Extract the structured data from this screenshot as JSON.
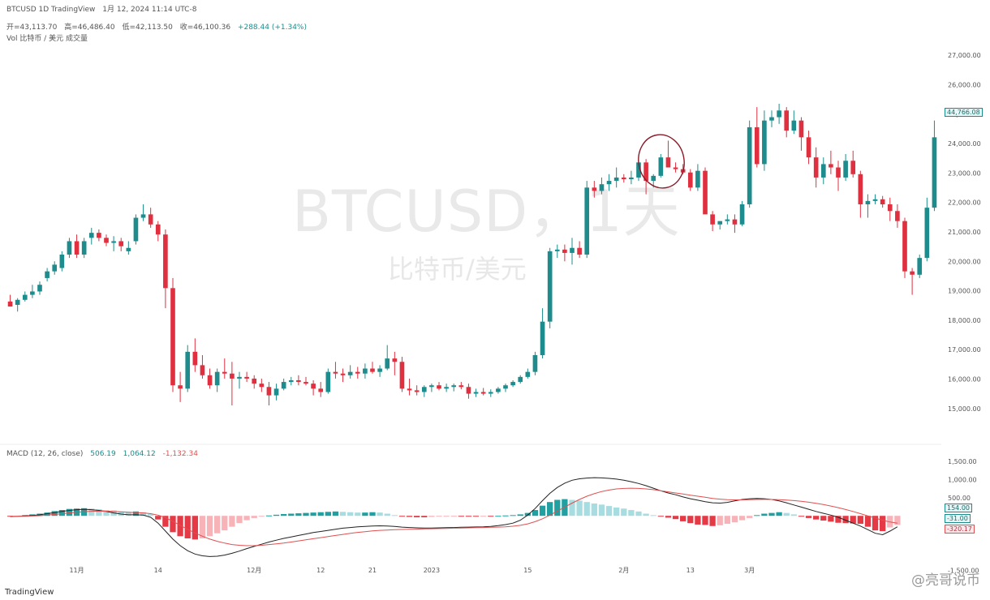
{
  "header": {
    "line1": "BTCUSD 1D TradingView",
    "line1_date": "1月 12, 2024 11:14 UTC-8",
    "ohlc": [
      "开=43,113.70",
      "高=46,486.40",
      "低=42,113.50",
      "收=46,100.36",
      "+288.44 (+1.34%)"
    ],
    "line3": "Vol 比特币 / 美元 成交量"
  },
  "watermark": {
    "main": "BTCUSD，1天",
    "sub": "比特币/美元"
  },
  "brand": {
    "source": "TradingView",
    "logo": "@亮哥说币"
  },
  "colors": {
    "up": "#1e8c8c",
    "down": "#e03040",
    "macd_line": "#222222",
    "signal_line": "#e05050",
    "hist_up": "#20a0a0",
    "hist_up_light": "#a7dde0",
    "hist_down": "#e53945",
    "hist_down_light": "#f7b3b8"
  },
  "macd": {
    "label": "MACD (12, 26, close)",
    "values": [
      "506.19",
      "1,064.12",
      "-1,132.34"
    ]
  },
  "price_boxes": {
    "last": "44,766.08",
    "macd_a": "154.00",
    "macd_b": "-31.00",
    "macd_c": "-320.17"
  },
  "chart_data": [
    {
      "type": "candlestick",
      "title": "BTCUSD，1天",
      "subtitle": "比特币/美元",
      "ylim": [
        14500,
        47500
      ],
      "yticks": [
        15000,
        16000,
        17000,
        18000,
        19000,
        20000,
        21000,
        22000,
        23000,
        24000,
        25000,
        26000,
        27000
      ],
      "ytick_labels": [
        "15,000.00",
        "16,000.00",
        "17,000.00",
        "18,000.00",
        "19,000.00",
        "20,000.00",
        "21,000.00",
        "22,000.00",
        "23,000.00",
        "24,000.00",
        "25,000.00",
        "26,000.00",
        "27,000.00"
      ],
      "x_labels": [
        "11月",
        "14",
        "12月",
        "12",
        "21",
        "2023",
        "15",
        "2月",
        "13",
        "3月"
      ],
      "x_label_index": [
        9,
        20,
        33,
        42,
        49,
        57,
        70,
        83,
        92,
        100
      ],
      "annotation": "circled area near 2月",
      "candles": [
        [
          19400,
          19600,
          19250,
          19250
        ],
        [
          19300,
          19500,
          19100,
          19450
        ],
        [
          19450,
          19700,
          19400,
          19600
        ],
        [
          19600,
          19900,
          19500,
          19700
        ],
        [
          19700,
          20000,
          19600,
          19900
        ],
        [
          20100,
          20400,
          20000,
          20300
        ],
        [
          20300,
          20600,
          20200,
          20500
        ],
        [
          20400,
          20900,
          20300,
          20800
        ],
        [
          20800,
          21300,
          20700,
          21200
        ],
        [
          21200,
          21400,
          20700,
          20800
        ],
        [
          20800,
          21300,
          20700,
          21200
        ],
        [
          21300,
          21600,
          21100,
          21450
        ],
        [
          21450,
          21550,
          21200,
          21300
        ],
        [
          21300,
          21400,
          21050,
          21150
        ],
        [
          21150,
          21350,
          20900,
          21200
        ],
        [
          21200,
          21300,
          20900,
          21050
        ],
        [
          20900,
          21200,
          20800,
          21000
        ],
        [
          21200,
          22000,
          21100,
          21900
        ],
        [
          21900,
          22300,
          21800,
          22000
        ],
        [
          22000,
          22200,
          21600,
          21700
        ],
        [
          21700,
          21800,
          21200,
          21400
        ],
        [
          21400,
          21550,
          19200,
          19800
        ],
        [
          19800,
          20100,
          16700,
          16900
        ],
        [
          16900,
          17300,
          16400,
          16800
        ],
        [
          16800,
          18100,
          16700,
          17900
        ],
        [
          17900,
          18300,
          17300,
          17500
        ],
        [
          17500,
          17800,
          17100,
          17200
        ],
        [
          17200,
          17400,
          16800,
          16900
        ],
        [
          16900,
          17400,
          16700,
          17300
        ],
        [
          17300,
          17700,
          17100,
          17250
        ],
        [
          17250,
          17600,
          16300,
          17100
        ],
        [
          17100,
          17300,
          16800,
          17150
        ],
        [
          17150,
          17300,
          17000,
          17100
        ],
        [
          17100,
          17200,
          16800,
          16950
        ],
        [
          16950,
          17100,
          16700,
          16850
        ],
        [
          16850,
          17000,
          16300,
          16600
        ],
        [
          16600,
          16950,
          16450,
          16800
        ],
        [
          16800,
          17100,
          16750,
          17000
        ],
        [
          17000,
          17150,
          16900,
          17050
        ],
        [
          17050,
          17200,
          16900,
          17000
        ],
        [
          17000,
          17150,
          16900,
          16950
        ],
        [
          16950,
          17050,
          16600,
          16800
        ],
        [
          16800,
          17000,
          16550,
          16700
        ],
        [
          16700,
          17400,
          16650,
          17300
        ],
        [
          17300,
          17600,
          17100,
          17250
        ],
        [
          17250,
          17400,
          17000,
          17200
        ],
        [
          17200,
          17500,
          17100,
          17300
        ],
        [
          17300,
          17450,
          17100,
          17250
        ],
        [
          17250,
          17550,
          17100,
          17400
        ],
        [
          17400,
          17600,
          17250,
          17300
        ],
        [
          17300,
          17500,
          17150,
          17400
        ],
        [
          17400,
          18100,
          17350,
          17700
        ],
        [
          17700,
          17900,
          17200,
          17600
        ],
        [
          17600,
          17750,
          16700,
          16800
        ],
        [
          16800,
          17100,
          16600,
          16750
        ],
        [
          16750,
          16900,
          16600,
          16700
        ],
        [
          16700,
          16900,
          16550,
          16850
        ],
        [
          16850,
          16950,
          16700,
          16900
        ],
        [
          16900,
          17000,
          16750,
          16800
        ],
        [
          16800,
          16950,
          16700,
          16850
        ],
        [
          16850,
          16950,
          16720,
          16900
        ],
        [
          16900,
          17000,
          16780,
          16850
        ],
        [
          16850,
          16950,
          16500,
          16650
        ],
        [
          16650,
          16800,
          16550,
          16700
        ],
        [
          16700,
          16820,
          16600,
          16650
        ],
        [
          16650,
          16780,
          16550,
          16700
        ],
        [
          16700,
          16850,
          16650,
          16800
        ],
        [
          16800,
          16950,
          16700,
          16900
        ],
        [
          16900,
          17050,
          16850,
          17000
        ],
        [
          17000,
          17200,
          16950,
          17150
        ],
        [
          17150,
          17400,
          17100,
          17300
        ],
        [
          17300,
          17900,
          17200,
          17800
        ],
        [
          17800,
          19200,
          17700,
          18800
        ],
        [
          18800,
          21000,
          18600,
          20900
        ],
        [
          20900,
          21100,
          20700,
          20950
        ],
        [
          20950,
          21100,
          20600,
          20850
        ],
        [
          20850,
          21300,
          20500,
          21000
        ],
        [
          21000,
          21200,
          20700,
          20800
        ],
        [
          20800,
          23000,
          20700,
          22800
        ],
        [
          22800,
          23000,
          22500,
          22700
        ],
        [
          22700,
          23100,
          22600,
          22900
        ],
        [
          22900,
          23200,
          22700,
          23000
        ],
        [
          23000,
          23400,
          22800,
          23100
        ],
        [
          23100,
          23200,
          22950,
          23050
        ],
        [
          23050,
          23300,
          22900,
          23100
        ],
        [
          23100,
          23600,
          23000,
          23550
        ],
        [
          23550,
          23650,
          22600,
          23000
        ],
        [
          23000,
          23200,
          22800,
          23150
        ],
        [
          23150,
          23800,
          23100,
          23700
        ],
        [
          23700,
          24200,
          23500,
          23400
        ],
        [
          23400,
          23550,
          23250,
          23350
        ],
        [
          23350,
          23500,
          23200,
          23250
        ],
        [
          23250,
          23350,
          22700,
          22800
        ],
        [
          22800,
          23500,
          22700,
          23300
        ],
        [
          23300,
          23400,
          22300,
          22000
        ],
        [
          22000,
          22100,
          21500,
          21700
        ],
        [
          21700,
          21800,
          21550,
          21800
        ],
        [
          21800,
          22000,
          21700,
          21850
        ],
        [
          21850,
          22000,
          21450,
          21700
        ],
        [
          21700,
          22400,
          21650,
          22300
        ],
        [
          22300,
          24800,
          22200,
          24600
        ],
        [
          24600,
          25200,
          23400,
          23500
        ],
        [
          23500,
          25100,
          23300,
          24800
        ],
        [
          24800,
          25100,
          24600,
          24900
        ],
        [
          24900,
          25300,
          24700,
          25100
        ],
        [
          25100,
          25200,
          24300,
          24500
        ],
        [
          24500,
          25100,
          24400,
          24800
        ],
        [
          24800,
          24900,
          23900,
          24300
        ],
        [
          24300,
          24500,
          23500,
          23700
        ],
        [
          23700,
          24000,
          22800,
          23100
        ],
        [
          23100,
          23700,
          22900,
          23500
        ],
        [
          23500,
          23900,
          23200,
          23400
        ],
        [
          23400,
          23600,
          22700,
          23100
        ],
        [
          23100,
          23800,
          23000,
          23600
        ],
        [
          23600,
          23900,
          23100,
          23200
        ],
        [
          23200,
          23300,
          21900,
          22300
        ],
        [
          22300,
          22600,
          21900,
          22400
        ],
        [
          22400,
          22600,
          22300,
          22450
        ],
        [
          22450,
          22550,
          22200,
          22300
        ],
        [
          22300,
          22500,
          21800,
          22100
        ],
        [
          22100,
          22300,
          21600,
          21800
        ],
        [
          21800,
          21900,
          20100,
          20300
        ],
        [
          20300,
          20400,
          19600,
          20200
        ],
        [
          20200,
          20800,
          20100,
          20700
        ],
        [
          20700,
          22500,
          20600,
          22200
        ],
        [
          22200,
          24800,
          22100,
          24300
        ]
      ]
    },
    {
      "type": "macd",
      "title": "MACD (12, 26, close)",
      "ylim": [
        -1200,
        1700
      ],
      "yticks": [
        1500,
        1000,
        500,
        -1500
      ],
      "ytick_labels": [
        "1,500.00",
        "1,000.00",
        "500.00",
        "-1,500.00"
      ],
      "histogram": [
        -10,
        -5,
        20,
        40,
        60,
        90,
        130,
        160,
        190,
        200,
        210,
        200,
        180,
        160,
        150,
        120,
        110,
        120,
        100,
        50,
        -100,
        -300,
        -450,
        -560,
        -620,
        -650,
        -620,
        -560,
        -480,
        -400,
        -300,
        -200,
        -120,
        -60,
        -20,
        10,
        30,
        50,
        60,
        70,
        80,
        90,
        100,
        110,
        120,
        110,
        100,
        90,
        90,
        100,
        90,
        60,
        20,
        -20,
        -30,
        -40,
        -40,
        -30,
        -20,
        -15,
        -10,
        -10,
        -10,
        -10,
        -5,
        -5,
        0,
        10,
        20,
        40,
        80,
        160,
        280,
        380,
        440,
        460,
        440,
        420,
        380,
        340,
        310,
        270,
        230,
        200,
        160,
        120,
        60,
        20,
        -20,
        -50,
        -90,
        -150,
        -200,
        -240,
        -250,
        -280,
        -260,
        -220,
        -180,
        -120,
        -60,
        20,
        60,
        80,
        100,
        80,
        40,
        -20,
        -60,
        -100,
        -130,
        -160,
        -190,
        -200,
        -210,
        -220,
        -300,
        -400,
        -420,
        -320,
        -250
      ],
      "macd_line": [
        -20,
        -15,
        -5,
        10,
        30,
        60,
        90,
        120,
        150,
        170,
        180,
        170,
        150,
        120,
        80,
        50,
        30,
        30,
        20,
        -40,
        -200,
        -420,
        -640,
        -820,
        -960,
        -1050,
        -1100,
        -1120,
        -1110,
        -1080,
        -1030,
        -970,
        -900,
        -840,
        -780,
        -720,
        -670,
        -620,
        -580,
        -540,
        -500,
        -460,
        -430,
        -400,
        -370,
        -340,
        -320,
        -300,
        -290,
        -280,
        -275,
        -280,
        -290,
        -310,
        -320,
        -330,
        -335,
        -335,
        -330,
        -325,
        -320,
        -315,
        -310,
        -305,
        -300,
        -290,
        -270,
        -240,
        -200,
        -120,
        20,
        200,
        420,
        620,
        780,
        900,
        980,
        1020,
        1040,
        1050,
        1045,
        1030,
        1010,
        980,
        940,
        890,
        830,
        760,
        690,
        630,
        580,
        520,
        470,
        430,
        390,
        360,
        350,
        370,
        410,
        450,
        470,
        480,
        470,
        450,
        410,
        360,
        300,
        240,
        180,
        120,
        70,
        20,
        -40,
        -120,
        -200,
        -280,
        -380,
        -480,
        -520,
        -420,
        -300
      ],
      "signal_line": [
        -10,
        -10,
        -10,
        -5,
        5,
        20,
        40,
        60,
        80,
        100,
        115,
        125,
        130,
        128,
        120,
        110,
        100,
        90,
        80,
        60,
        20,
        -50,
        -150,
        -260,
        -370,
        -470,
        -560,
        -640,
        -700,
        -750,
        -790,
        -810,
        -820,
        -820,
        -810,
        -790,
        -770,
        -750,
        -720,
        -690,
        -660,
        -630,
        -600,
        -570,
        -540,
        -510,
        -480,
        -455,
        -435,
        -415,
        -400,
        -390,
        -380,
        -375,
        -370,
        -365,
        -360,
        -355,
        -350,
        -345,
        -340,
        -335,
        -330,
        -325,
        -320,
        -315,
        -310,
        -300,
        -285,
        -260,
        -220,
        -160,
        -80,
        20,
        130,
        240,
        350,
        450,
        540,
        610,
        670,
        710,
        740,
        755,
        760,
        755,
        740,
        720,
        690,
        660,
        630,
        600,
        570,
        540,
        510,
        480,
        460,
        445,
        440,
        440,
        445,
        450,
        452,
        450,
        445,
        435,
        420,
        400,
        375,
        345,
        310,
        270,
        225,
        175,
        120,
        60,
        0,
        -60,
        -120,
        -170,
        -200
      ]
    }
  ]
}
